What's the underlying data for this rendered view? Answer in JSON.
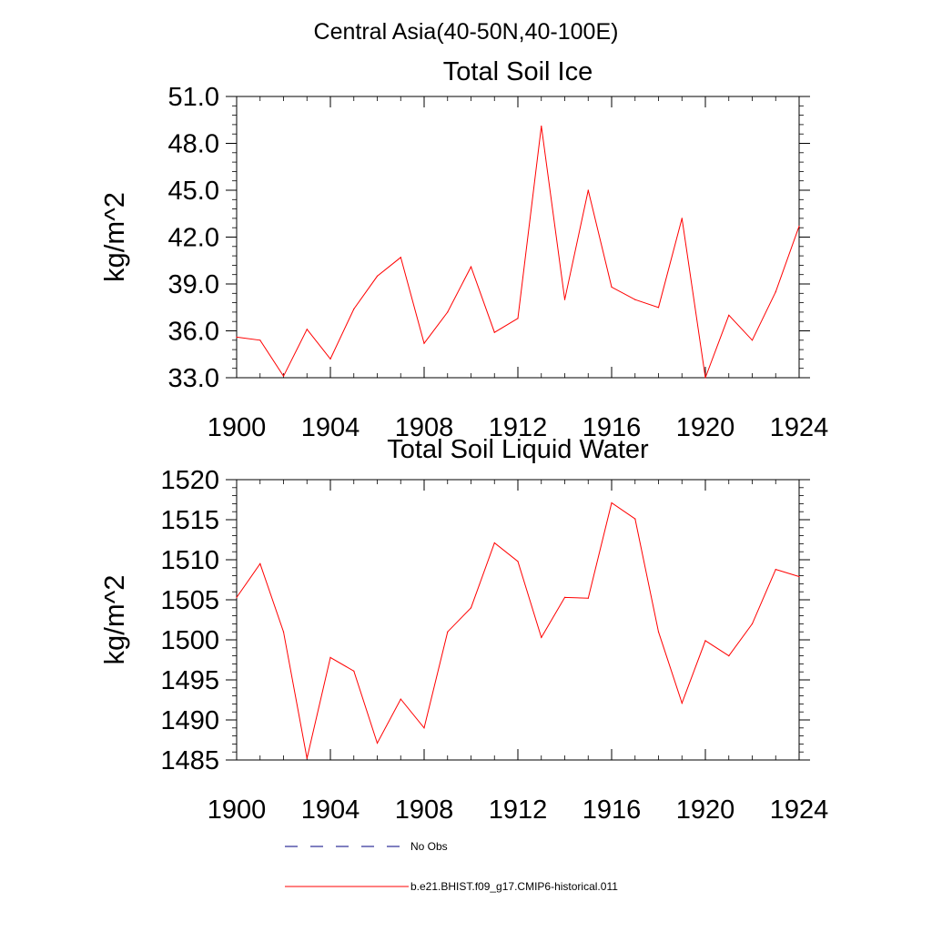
{
  "figure": {
    "title": "Central Asia(40-50N,40-100E)"
  },
  "chart_data": [
    {
      "type": "line",
      "title": "Total Soil Ice",
      "xlabel": "",
      "ylabel": "kg/m^2",
      "xlim": [
        1900,
        1924
      ],
      "ylim": [
        33.0,
        51.0
      ],
      "x_ticks": [
        1900,
        1904,
        1908,
        1912,
        1916,
        1920,
        1924
      ],
      "x_tick_labels": [
        "1900",
        "1904",
        "1908",
        "1912",
        "1916",
        "1920",
        "1924"
      ],
      "y_ticks": [
        33.0,
        36.0,
        39.0,
        42.0,
        45.0,
        48.0,
        51.0
      ],
      "y_tick_labels": [
        "33.0",
        "36.0",
        "39.0",
        "42.0",
        "45.0",
        "48.0",
        "51.0"
      ],
      "grid": false,
      "series": [
        {
          "color": "#ff0000",
          "x": [
            1900,
            1901,
            1902,
            1903,
            1904,
            1905,
            1906,
            1907,
            1908,
            1909,
            1910,
            1911,
            1912,
            1913,
            1914,
            1915,
            1916,
            1917,
            1918,
            1919,
            1920,
            1921,
            1922,
            1923,
            1924
          ],
          "values": [
            35.6,
            35.4,
            33.1,
            36.1,
            34.2,
            37.4,
            39.5,
            40.7,
            35.2,
            37.2,
            40.1,
            35.9,
            36.8,
            49.1,
            38.0,
            45.0,
            38.8,
            38.0,
            37.5,
            43.2,
            33.0,
            37.0,
            35.4,
            38.5,
            42.7
          ]
        }
      ]
    },
    {
      "type": "line",
      "title": "Total Soil Liquid Water",
      "xlabel": "",
      "ylabel": "kg/m^2",
      "xlim": [
        1900,
        1924
      ],
      "ylim": [
        1485,
        1520
      ],
      "x_ticks": [
        1900,
        1904,
        1908,
        1912,
        1916,
        1920,
        1924
      ],
      "x_tick_labels": [
        "1900",
        "1904",
        "1908",
        "1912",
        "1916",
        "1920",
        "1924"
      ],
      "y_ticks": [
        1485,
        1490,
        1495,
        1500,
        1505,
        1510,
        1515,
        1520
      ],
      "y_tick_labels": [
        "1485",
        "1490",
        "1495",
        "1500",
        "1505",
        "1510",
        "1515",
        "1520"
      ],
      "grid": false,
      "series": [
        {
          "color": "#ff0000",
          "x": [
            1900,
            1901,
            1902,
            1903,
            1904,
            1905,
            1906,
            1907,
            1908,
            1909,
            1910,
            1911,
            1912,
            1913,
            1914,
            1915,
            1916,
            1917,
            1918,
            1919,
            1920,
            1921,
            1922,
            1923,
            1924
          ],
          "values": [
            1505.3,
            1509.5,
            1501.0,
            1485.2,
            1497.8,
            1496.1,
            1487.1,
            1492.6,
            1489.0,
            1501.0,
            1504.0,
            1512.1,
            1509.8,
            1500.3,
            1505.3,
            1505.2,
            1517.1,
            1515.1,
            1501.0,
            1492.1,
            1499.9,
            1498.0,
            1502.0,
            1508.8,
            1507.9
          ]
        }
      ]
    }
  ],
  "legend": {
    "entries": [
      {
        "label": "No Obs",
        "style": "dashed",
        "color": "#000080"
      },
      {
        "label": "b.e21.BHIST.f09_g17.CMIP6-historical.011",
        "style": "solid",
        "color": "#ff0000"
      }
    ]
  }
}
